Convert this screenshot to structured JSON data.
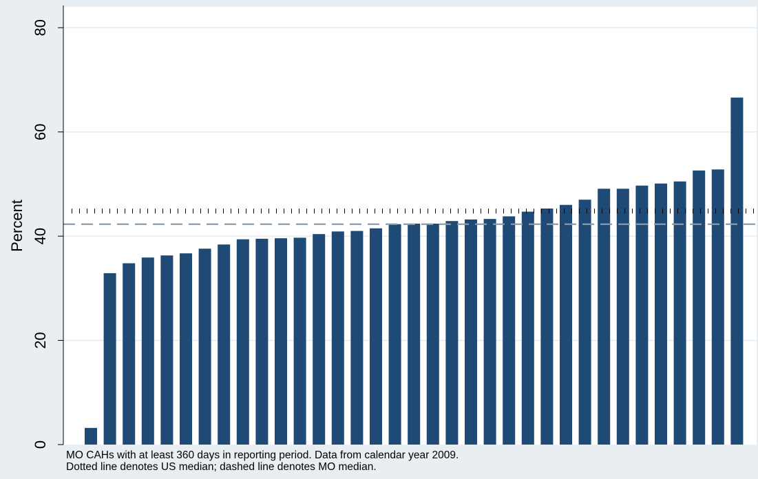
{
  "chart_data": {
    "type": "bar",
    "ylabel": "Percent",
    "ylim": [
      0,
      84
    ],
    "yticks": [
      0,
      20,
      40,
      60,
      80
    ],
    "grid": true,
    "values": [
      3.2,
      32.9,
      34.8,
      35.9,
      36.3,
      36.7,
      37.6,
      38.4,
      39.4,
      39.5,
      39.6,
      39.7,
      40.4,
      40.9,
      41.0,
      41.5,
      42.3,
      42.4,
      42.4,
      42.9,
      43.2,
      43.3,
      43.8,
      44.7,
      45.3,
      46.0,
      47.0,
      49.1,
      49.1,
      49.7,
      50.1,
      50.5,
      52.6,
      52.8,
      66.6
    ],
    "bar_color": "#1f4a75",
    "reference_lines": [
      {
        "label": "US median",
        "style": "dotted",
        "value": 44.8,
        "color": "#000000"
      },
      {
        "label": "MO median",
        "style": "dashed",
        "value": 42.3,
        "color": "#8a9bab"
      }
    ]
  },
  "notes": [
    "MO CAHs with at least 360 days in reporting period. Data from calendar year 2009.",
    "Dotted line denotes US median; dashed line denotes MO median."
  ],
  "colors": {
    "page_background": "#e9eef2",
    "plot_background": "#ffffff",
    "grid": "#e2eaef"
  }
}
